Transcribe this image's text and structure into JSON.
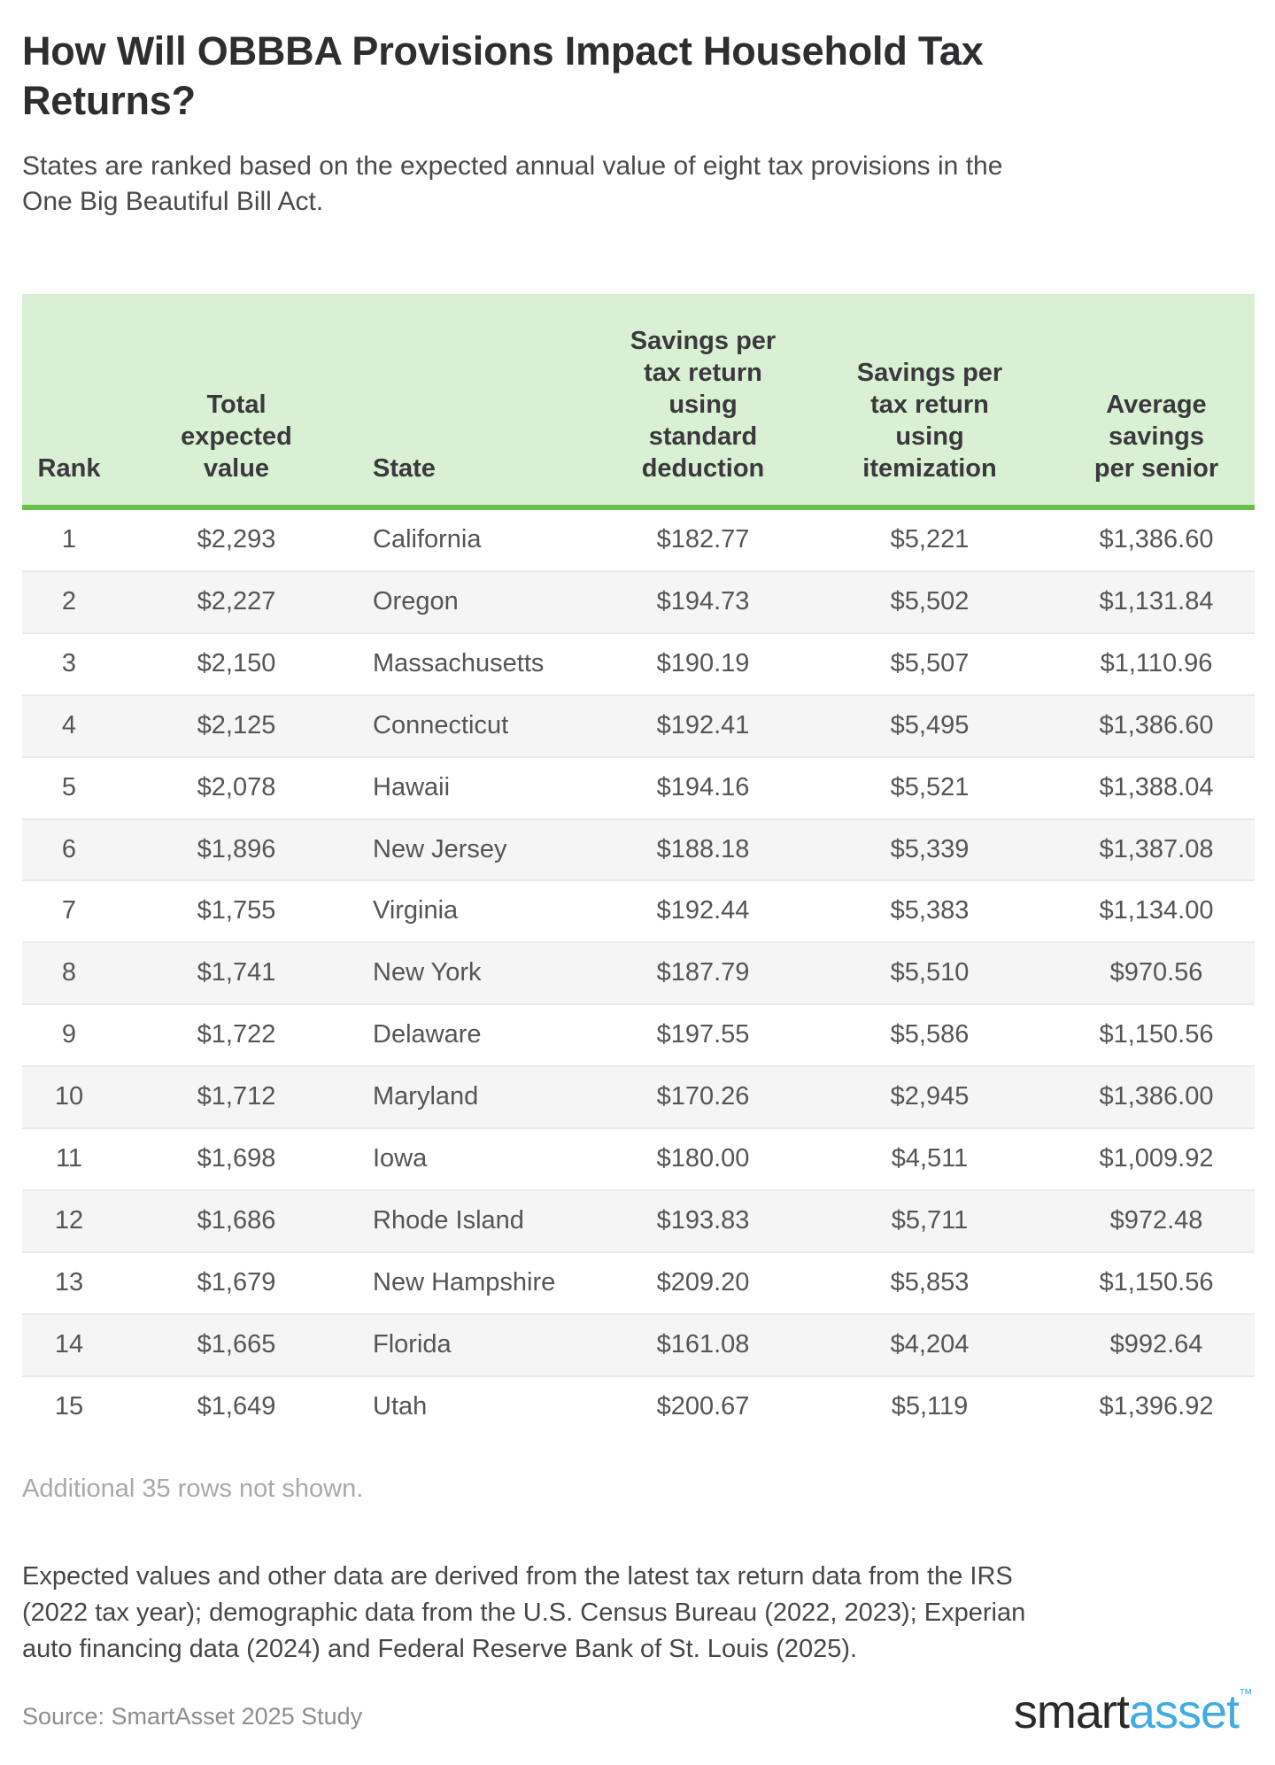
{
  "page": {
    "title": "How Will OBBBA Provisions Impact Household Tax\nReturns?",
    "subtitle": "States are ranked based on the expected annual value of eight tax provisions in the\nOne Big Beautiful Bill Act.",
    "rows_note": "Additional 35 rows not shown.",
    "methodology": "Expected values and other data are derived from the latest tax return data from the IRS\n(2022 tax year); demographic data from the U.S. Census Bureau (2022, 2023); Experian\nauto financing data (2024) and Federal Reserve Bank of St. Louis (2025).",
    "source": "Source: SmartAsset 2025 Study",
    "logo": {
      "part1": "smart",
      "part2": "asset",
      "tm": "™"
    }
  },
  "colors": {
    "header_bg": "#d9f0d5",
    "header_border": "#6dbf4b",
    "row_alt_bg": "#f5f5f5",
    "row_divider": "#e9e9e9",
    "logo_dark": "#2b2a2a",
    "logo_blue": "#43abe1"
  },
  "table": {
    "headers": {
      "rank": "Rank",
      "total": "Total\nexpected\nvalue",
      "state": "State",
      "std": "Savings per\ntax return\nusing\nstandard\ndeduction",
      "item": "Savings per\ntax return\nusing\nitemization",
      "senior": "Average\nsavings\nper senior"
    }
  },
  "chart_data": {
    "type": "table",
    "title": "How Will OBBBA Provisions Impact Household Tax Returns?",
    "subtitle": "States are ranked based on the expected annual value of eight tax provisions in the One Big Beautiful Bill Act.",
    "columns": [
      "Rank",
      "Total expected value",
      "State",
      "Savings per tax return using standard deduction",
      "Savings per tax return using itemization",
      "Average savings per senior"
    ],
    "note": "Additional 35 rows not shown.",
    "rows": [
      {
        "rank": "1",
        "total": "$2,293",
        "state": "California",
        "std": "$182.77",
        "item": "$5,221",
        "senior": "$1,386.60"
      },
      {
        "rank": "2",
        "total": "$2,227",
        "state": "Oregon",
        "std": "$194.73",
        "item": "$5,502",
        "senior": "$1,131.84"
      },
      {
        "rank": "3",
        "total": "$2,150",
        "state": "Massachusetts",
        "std": "$190.19",
        "item": "$5,507",
        "senior": "$1,110.96"
      },
      {
        "rank": "4",
        "total": "$2,125",
        "state": "Connecticut",
        "std": "$192.41",
        "item": "$5,495",
        "senior": "$1,386.60"
      },
      {
        "rank": "5",
        "total": "$2,078",
        "state": "Hawaii",
        "std": "$194.16",
        "item": "$5,521",
        "senior": "$1,388.04"
      },
      {
        "rank": "6",
        "total": "$1,896",
        "state": "New Jersey",
        "std": "$188.18",
        "item": "$5,339",
        "senior": "$1,387.08"
      },
      {
        "rank": "7",
        "total": "$1,755",
        "state": "Virginia",
        "std": "$192.44",
        "item": "$5,383",
        "senior": "$1,134.00"
      },
      {
        "rank": "8",
        "total": "$1,741",
        "state": "New York",
        "std": "$187.79",
        "item": "$5,510",
        "senior": "$970.56"
      },
      {
        "rank": "9",
        "total": "$1,722",
        "state": "Delaware",
        "std": "$197.55",
        "item": "$5,586",
        "senior": "$1,150.56"
      },
      {
        "rank": "10",
        "total": "$1,712",
        "state": "Maryland",
        "std": "$170.26",
        "item": "$2,945",
        "senior": "$1,386.00"
      },
      {
        "rank": "11",
        "total": "$1,698",
        "state": "Iowa",
        "std": "$180.00",
        "item": "$4,511",
        "senior": "$1,009.92"
      },
      {
        "rank": "12",
        "total": "$1,686",
        "state": "Rhode Island",
        "std": "$193.83",
        "item": "$5,711",
        "senior": "$972.48"
      },
      {
        "rank": "13",
        "total": "$1,679",
        "state": "New Hampshire",
        "std": "$209.20",
        "item": "$5,853",
        "senior": "$1,150.56"
      },
      {
        "rank": "14",
        "total": "$1,665",
        "state": "Florida",
        "std": "$161.08",
        "item": "$4,204",
        "senior": "$992.64"
      },
      {
        "rank": "15",
        "total": "$1,649",
        "state": "Utah",
        "std": "$200.67",
        "item": "$5,119",
        "senior": "$1,396.92"
      }
    ]
  }
}
